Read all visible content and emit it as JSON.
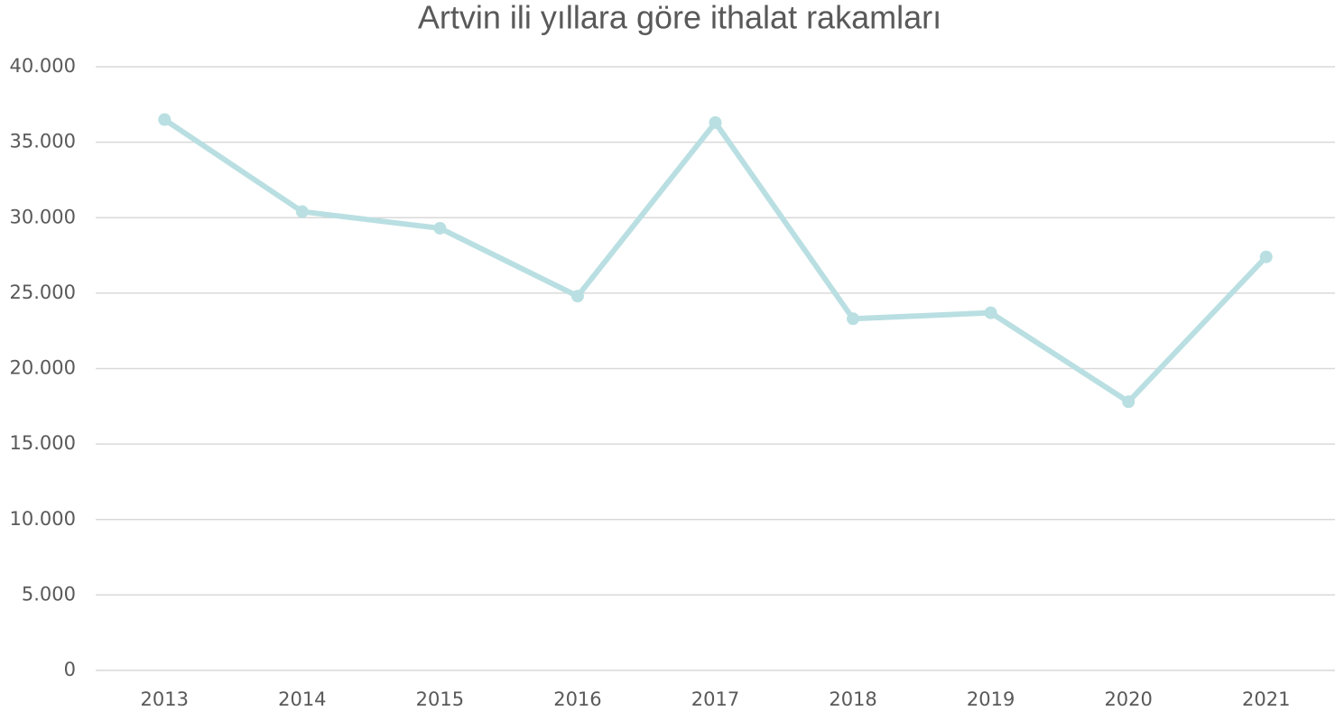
{
  "chart_data": {
    "type": "line",
    "title": "Artvin ili yıllara göre ithalat rakamları",
    "categories": [
      "2013",
      "2014",
      "2015",
      "2016",
      "2017",
      "2018",
      "2019",
      "2020",
      "2021"
    ],
    "series": [
      {
        "color": "#b9dfe2",
        "values": [
          36500,
          30400,
          29300,
          24800,
          36300,
          23300,
          23700,
          17800,
          27400
        ]
      }
    ],
    "ylim": [
      0,
      40000
    ],
    "yticks": [
      0,
      {
        "value": 5000,
        "label": "5.000"
      },
      {
        "value": 10000,
        "label": "10.000"
      },
      {
        "value": 15000,
        "label": "15.000"
      },
      {
        "value": 20000,
        "label": "20.000"
      },
      {
        "value": 25000,
        "label": "25.000"
      },
      {
        "value": 30000,
        "label": "30.000"
      },
      {
        "value": 35000,
        "label": "35.000"
      },
      {
        "value": 40000,
        "label": "40.000"
      }
    ],
    "grid": true
  }
}
